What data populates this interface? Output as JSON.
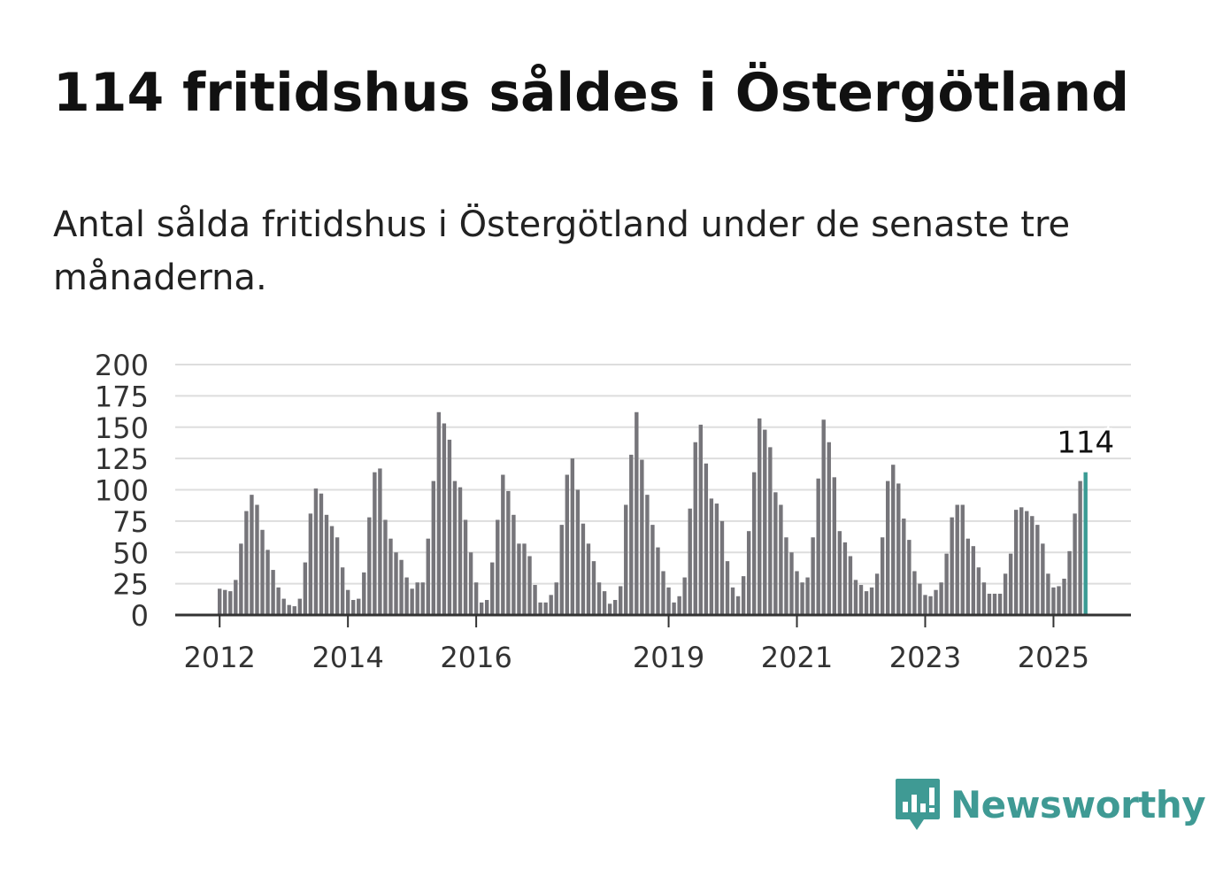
{
  "header": {
    "title": "114 fritidshus såldes i Östergötland",
    "subtitle": "Antal sålda fritidshus i Östergötland under de senaste tre månaderna."
  },
  "brand": {
    "name": "Newsworthy",
    "color": "#3f9a94",
    "icon": "newsworthy-logo-icon"
  },
  "chart_data": {
    "type": "bar",
    "start_month": "2012-01",
    "series": [
      {
        "values": [
          21,
          20,
          19,
          28,
          57,
          83,
          96,
          88,
          68,
          52,
          36,
          22,
          13,
          8,
          7,
          13,
          42,
          81,
          101,
          97,
          80,
          71,
          62,
          38,
          20,
          12,
          13,
          34,
          78,
          114,
          117,
          76,
          61,
          50,
          44,
          30,
          21,
          26,
          26,
          61,
          107,
          162,
          153,
          140,
          107,
          102,
          76,
          50,
          26,
          10,
          12,
          42,
          76,
          112,
          99,
          80,
          57,
          57,
          47,
          24,
          10,
          10,
          16,
          26,
          72,
          112,
          125,
          100,
          73,
          57,
          43,
          26,
          19,
          9,
          12,
          23,
          88,
          128,
          162,
          124,
          96,
          72,
          54,
          35,
          22,
          10,
          15,
          30,
          85,
          138,
          152,
          121,
          93,
          89,
          75,
          43,
          22,
          15,
          31,
          67,
          114,
          157,
          148,
          134,
          98,
          88,
          62,
          50,
          35,
          26,
          30,
          62,
          109,
          156,
          138,
          110,
          67,
          58,
          47,
          28,
          24,
          19,
          22,
          33,
          62,
          107,
          120,
          105,
          77,
          60,
          35,
          25,
          16,
          15,
          20,
          26,
          49,
          78,
          88,
          88,
          61,
          55,
          38,
          26,
          17,
          17,
          17,
          33,
          49,
          84,
          86,
          83,
          79,
          72,
          57,
          33,
          22,
          23,
          29,
          51,
          81,
          107,
          114
        ]
      }
    ],
    "ylim": [
      0,
      200
    ],
    "y_ticks": [
      0,
      25,
      50,
      75,
      100,
      125,
      150,
      175,
      200
    ],
    "x_tick_labels": [
      "2012",
      "2014",
      "2016",
      "2019",
      "2021",
      "2023",
      "2025"
    ],
    "x_tick_years": [
      2012,
      2014,
      2016,
      2019,
      2021,
      2023,
      2025
    ],
    "highlight_label": "114",
    "bar_color": "#76757a",
    "highlight_color": "#3a9b94",
    "grid": true
  }
}
